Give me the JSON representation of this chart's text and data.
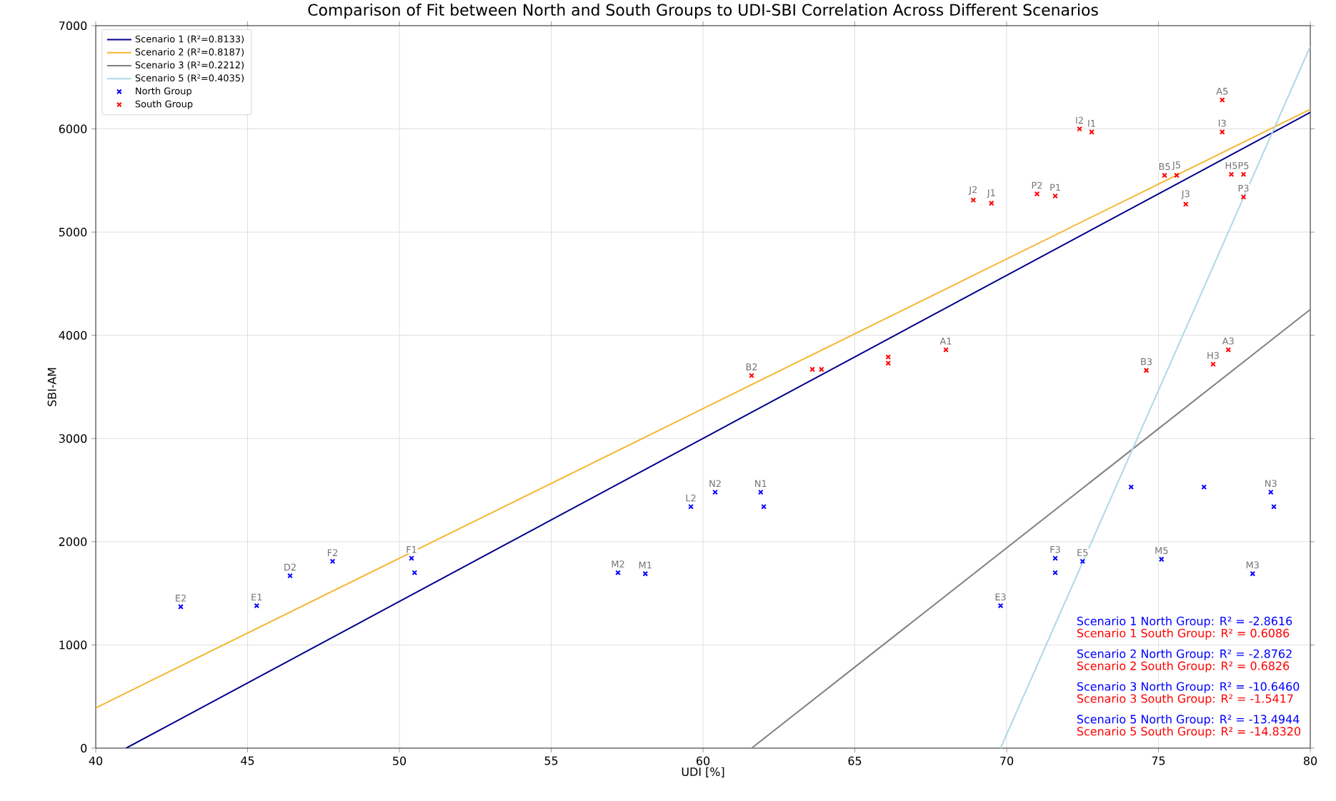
{
  "chart_data": {
    "type": "scatter",
    "title": "Comparison of Fit between North and South Groups to UDI-SBI Correlation Across Different Scenarios",
    "xlabel": "UDI [%]",
    "ylabel": "SBI-AM",
    "xlim": [
      40,
      80
    ],
    "ylim": [
      0,
      7000
    ],
    "xticks": [
      40,
      45,
      50,
      55,
      60,
      65,
      70,
      75,
      80
    ],
    "yticks": [
      0,
      1000,
      2000,
      3000,
      4000,
      5000,
      6000,
      7000
    ],
    "grid": true,
    "legend": "top left",
    "series": [
      {
        "name": "Scenario 1 (R²=0.8133)",
        "type": "line",
        "color": "#00008b",
        "x": [
          41.0,
          80
        ],
        "values": [
          0,
          6160
        ]
      },
      {
        "name": "Scenario 2 (R²=0.8187)",
        "type": "line",
        "color": "#f5b731",
        "x": [
          40,
          80
        ],
        "values": [
          390,
          6190
        ]
      },
      {
        "name": "Scenario 3 (R²=0.2212)",
        "type": "line",
        "color": "#808080",
        "x": [
          61.6,
          80
        ],
        "values": [
          0,
          4250
        ]
      },
      {
        "name": "Scenario 5 (R²=0.4035)",
        "type": "line",
        "color": "#add8e6",
        "x": [
          69.8,
          80
        ],
        "values": [
          0,
          6800
        ]
      },
      {
        "name": "North Group",
        "marker": "cross",
        "color": "#0000ff",
        "x": [
          42.8,
          45.3,
          46.4,
          47.8,
          50.4,
          50.5,
          57.2,
          58.1,
          59.6,
          60.4,
          61.9,
          62.0,
          69.8,
          71.6,
          71.6,
          72.5,
          74.1,
          75.1,
          76.5,
          78.7,
          78.8,
          78.1
        ],
        "values": [
          1370,
          1380,
          1670,
          1810,
          1840,
          1700,
          1700,
          1690,
          2340,
          2480,
          2480,
          2340,
          1380,
          1840,
          1700,
          1810,
          2530,
          1830,
          2530,
          2480,
          2340,
          1690
        ]
      },
      {
        "name": "South Group",
        "marker": "cross",
        "color": "#ff0000",
        "x": [
          61.6,
          63.6,
          63.9,
          66.1,
          66.1,
          68.0,
          68.9,
          69.5,
          71.0,
          71.6,
          72.4,
          72.8,
          75.2,
          75.6,
          75.9,
          74.6,
          76.8,
          77.3,
          77.1,
          77.1,
          77.4,
          77.8,
          77.8
        ],
        "values": [
          3610,
          3670,
          3670,
          3790,
          3730,
          3860,
          5310,
          5280,
          5370,
          5350,
          6000,
          5970,
          5550,
          5550,
          5270,
          3660,
          3720,
          3860,
          6280,
          5970,
          5560,
          5560,
          5340
        ]
      }
    ],
    "annotations": [
      "Scenario 1 North Group: R² = -2.8616",
      "Scenario 1 South Group: R² = 0.6086",
      "Scenario 2 North Group: R² = -2.8762",
      "Scenario 2 South Group: R² = 0.6826",
      "Scenario 3 North Group: R² = -10.6460",
      "Scenario 3 South Group: R² = -1.5417",
      "Scenario 5 North Group: R² = -13.4944",
      "Scenario 5 South Group: R² = -14.8320",
      {
        "text": "E2",
        "x": 42.8,
        "y": 1370
      },
      {
        "text": "E1",
        "x": 45.3,
        "y": 1380
      },
      {
        "text": "D2",
        "x": 46.4,
        "y": 1670
      },
      {
        "text": "F2",
        "x": 47.8,
        "y": 1810
      },
      {
        "text": "F1",
        "x": 50.4,
        "y": 1840
      },
      {
        "text": "M2",
        "x": 57.2,
        "y": 1700
      },
      {
        "text": "M1",
        "x": 58.1,
        "y": 1690
      },
      {
        "text": "L2",
        "x": 59.6,
        "y": 2340
      },
      {
        "text": "N2",
        "x": 60.4,
        "y": 2480
      },
      {
        "text": "N1",
        "x": 61.9,
        "y": 2480
      },
      {
        "text": "E3",
        "x": 69.8,
        "y": 1380
      },
      {
        "text": "F3",
        "x": 71.6,
        "y": 1840
      },
      {
        "text": "E5",
        "x": 72.5,
        "y": 1810
      },
      {
        "text": "M5",
        "x": 75.1,
        "y": 1830
      },
      {
        "text": "N3",
        "x": 78.7,
        "y": 2480
      },
      {
        "text": "M3",
        "x": 78.1,
        "y": 1690
      },
      {
        "text": "B2",
        "x": 61.6,
        "y": 3610
      },
      {
        "text": "A1",
        "x": 68.0,
        "y": 3860
      },
      {
        "text": "J2",
        "x": 68.9,
        "y": 5310
      },
      {
        "text": "J1",
        "x": 69.5,
        "y": 5280
      },
      {
        "text": "P2",
        "x": 71.0,
        "y": 5370
      },
      {
        "text": "P1",
        "x": 71.6,
        "y": 5350
      },
      {
        "text": "I2",
        "x": 72.4,
        "y": 6000
      },
      {
        "text": "I1",
        "x": 72.8,
        "y": 5970
      },
      {
        "text": "B5",
        "x": 75.2,
        "y": 5550
      },
      {
        "text": "J5",
        "x": 75.6,
        "y": 5550
      },
      {
        "text": "J3",
        "x": 75.9,
        "y": 5270
      },
      {
        "text": "B3",
        "x": 74.6,
        "y": 3660
      },
      {
        "text": "H3",
        "x": 76.8,
        "y": 3720
      },
      {
        "text": "A3",
        "x": 77.3,
        "y": 3860
      },
      {
        "text": "A5",
        "x": 77.1,
        "y": 6280
      },
      {
        "text": "I3",
        "x": 77.1,
        "y": 5970
      },
      {
        "text": "H5",
        "x": 77.4,
        "y": 5560
      },
      {
        "text": "P5",
        "x": 77.8,
        "y": 5560
      },
      {
        "text": "P3",
        "x": 77.8,
        "y": 5340
      }
    ]
  }
}
